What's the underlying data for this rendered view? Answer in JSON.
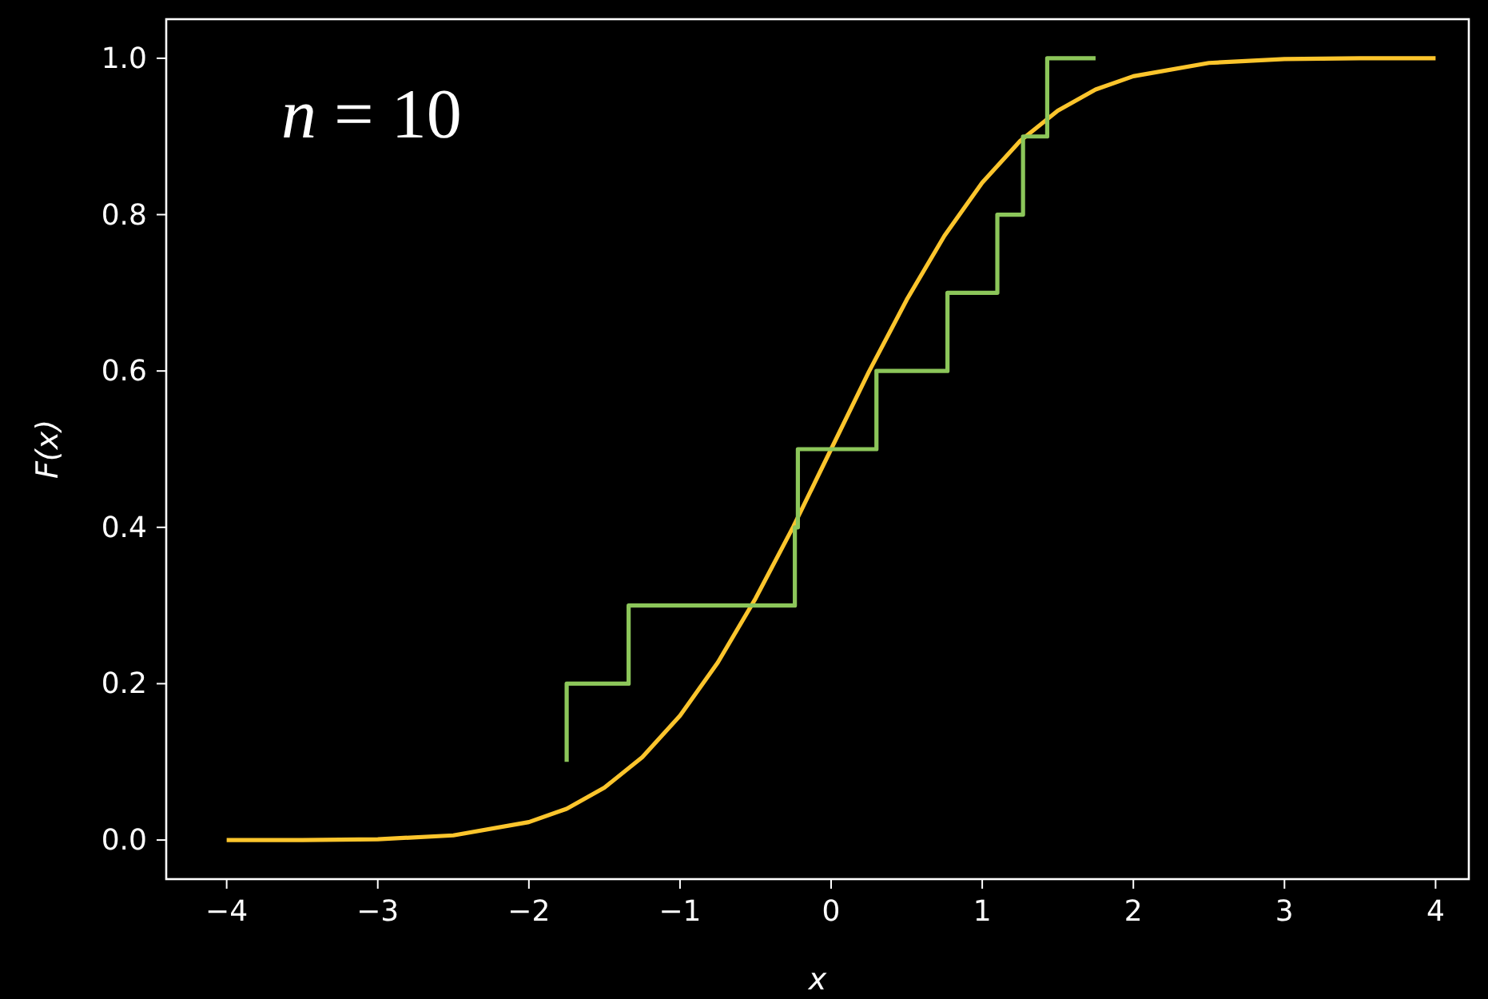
{
  "chart_data": {
    "type": "line",
    "xlabel": "x",
    "ylabel": "F(x)",
    "annotations": [
      "n = 10"
    ],
    "xlim": [
      -4.4,
      4.22
    ],
    "ylim": [
      -0.05,
      1.05
    ],
    "xticks": [
      {
        "value": -4,
        "label": "−4"
      },
      {
        "value": -3,
        "label": "−3"
      },
      {
        "value": -2,
        "label": "−2"
      },
      {
        "value": -1,
        "label": "−1"
      },
      0,
      1,
      2,
      3,
      4
    ],
    "yticks": [
      {
        "value": 0,
        "label": "0.0"
      },
      {
        "value": 0.2,
        "label": "0.2"
      },
      {
        "value": 0.4,
        "label": "0.4"
      },
      {
        "value": 0.6,
        "label": "0.6"
      },
      {
        "value": 0.8,
        "label": "0.8"
      },
      {
        "value": 1,
        "label": "1.0"
      }
    ],
    "grid": false,
    "series": [
      {
        "color": "#fcc52c",
        "x": [
          -4,
          -3.5,
          -3,
          -2.5,
          -2,
          -1.75,
          -1.5,
          -1.25,
          -1,
          -0.75,
          -0.5,
          -0.25,
          0,
          0.25,
          0.5,
          0.75,
          1,
          1.25,
          1.5,
          1.75,
          2,
          2.5,
          3,
          3.5,
          4
        ],
        "values": [
          0.0,
          0.0,
          0.001,
          0.006,
          0.023,
          0.04,
          0.067,
          0.106,
          0.159,
          0.227,
          0.309,
          0.401,
          0.5,
          0.599,
          0.691,
          0.773,
          0.841,
          0.894,
          0.933,
          0.96,
          0.977,
          0.994,
          0.999,
          1.0,
          1.0
        ]
      },
      {
        "type": "step",
        "color": "#8cc65a",
        "x": [
          -1.75,
          -1.75,
          -1.34,
          -0.24,
          -0.22,
          0.3,
          0.77,
          1.1,
          1.27,
          1.43,
          1.75
        ],
        "values": [
          0.1,
          0.2,
          0.3,
          0.4,
          0.5,
          0.6,
          0.7,
          0.8,
          0.9,
          1.0,
          1.0
        ]
      }
    ]
  }
}
